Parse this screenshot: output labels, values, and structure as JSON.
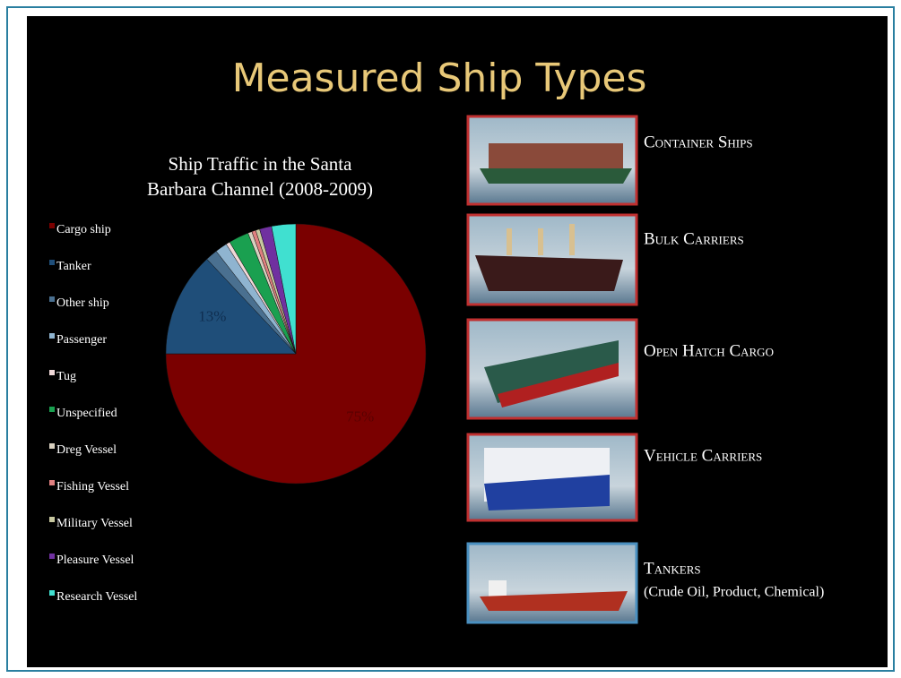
{
  "slide": {
    "title": "Measured Ship Types",
    "ships": [
      {
        "label": "Container Ships"
      },
      {
        "label": "Bulk Carriers"
      },
      {
        "label": "Open Hatch Cargo"
      },
      {
        "label": "Vehicle Carriers"
      },
      {
        "label": "Tankers",
        "note": "(Crude Oil, Product, Chemical)"
      }
    ]
  },
  "chart_data": {
    "type": "pie",
    "title": [
      "Ship Traffic in the Santa",
      "Barbara Channel (2008-2009)"
    ],
    "categories": [
      "Cargo ship",
      "Tanker",
      "Other ship",
      "Passenger",
      "Tug",
      "Unspecified",
      "Dreg Vessel",
      "Fishing Vessel",
      "Military Vessel",
      "Pleasure Vessel",
      "Research Vessel"
    ],
    "values": [
      75,
      13,
      1.5,
      1.5,
      0.5,
      2.5,
      0.5,
      0.5,
      0.5,
      1.5,
      3
    ],
    "value_labels": [
      "75%",
      "13%",
      null,
      null,
      null,
      null,
      null,
      null,
      null,
      null,
      null
    ],
    "colors": [
      "#7a0000",
      "#1f4e79",
      "#4a7090",
      "#8fb4d0",
      "#f0d8d8",
      "#1aa050",
      "#d8d0c0",
      "#e08080",
      "#c8c8a0",
      "#7030a0",
      "#40e0d0"
    ],
    "legend": "left"
  }
}
